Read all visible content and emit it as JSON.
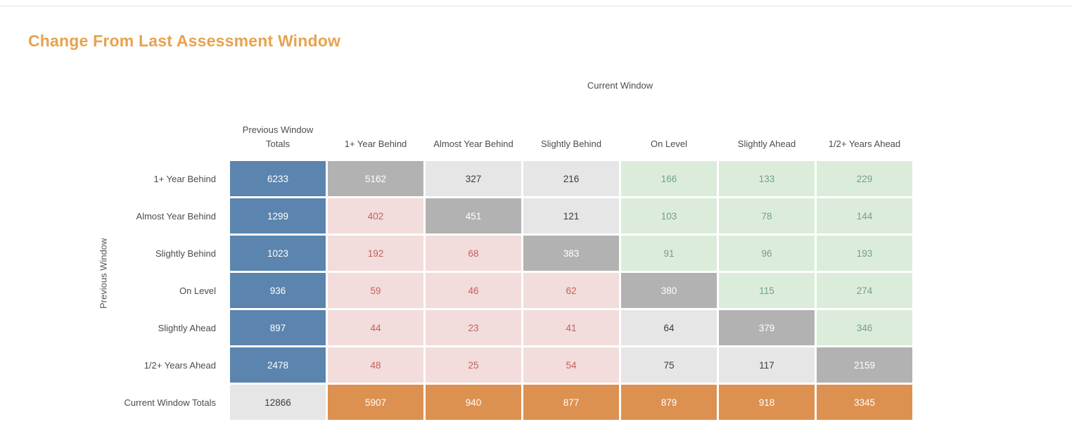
{
  "page": {
    "title": "Change From Last Assessment Window"
  },
  "matrix": {
    "x_axis_title": "Current Window",
    "y_axis_title": "Previous Window",
    "column_headers": [
      "Previous Window Totals",
      "1+ Year Behind",
      "Almost Year Behind",
      "Slightly Behind",
      "On Level",
      "Slightly Ahead",
      "1/2+ Years Ahead"
    ],
    "rows": [
      {
        "label": "1+ Year Behind",
        "cells": [
          {
            "value": "6233",
            "type": "prev-total"
          },
          {
            "value": "5162",
            "type": "match"
          },
          {
            "value": "327",
            "type": "neutral"
          },
          {
            "value": "216",
            "type": "neutral"
          },
          {
            "value": "166",
            "type": "improved"
          },
          {
            "value": "133",
            "type": "improved"
          },
          {
            "value": "229",
            "type": "improved"
          }
        ]
      },
      {
        "label": "Almost Year Behind",
        "cells": [
          {
            "value": "1299",
            "type": "prev-total"
          },
          {
            "value": "402",
            "type": "regressed"
          },
          {
            "value": "451",
            "type": "match"
          },
          {
            "value": "121",
            "type": "neutral"
          },
          {
            "value": "103",
            "type": "improved"
          },
          {
            "value": "78",
            "type": "improved"
          },
          {
            "value": "144",
            "type": "improved"
          }
        ]
      },
      {
        "label": "Slightly Behind",
        "cells": [
          {
            "value": "1023",
            "type": "prev-total"
          },
          {
            "value": "192",
            "type": "regressed"
          },
          {
            "value": "68",
            "type": "regressed"
          },
          {
            "value": "383",
            "type": "match"
          },
          {
            "value": "91",
            "type": "improved"
          },
          {
            "value": "96",
            "type": "improved"
          },
          {
            "value": "193",
            "type": "improved"
          }
        ]
      },
      {
        "label": "On Level",
        "cells": [
          {
            "value": "936",
            "type": "prev-total"
          },
          {
            "value": "59",
            "type": "regressed"
          },
          {
            "value": "46",
            "type": "regressed"
          },
          {
            "value": "62",
            "type": "regressed"
          },
          {
            "value": "380",
            "type": "match"
          },
          {
            "value": "115",
            "type": "improved"
          },
          {
            "value": "274",
            "type": "improved"
          }
        ]
      },
      {
        "label": "Slightly Ahead",
        "cells": [
          {
            "value": "897",
            "type": "prev-total"
          },
          {
            "value": "44",
            "type": "regressed"
          },
          {
            "value": "23",
            "type": "regressed"
          },
          {
            "value": "41",
            "type": "regressed"
          },
          {
            "value": "64",
            "type": "neutral"
          },
          {
            "value": "379",
            "type": "match"
          },
          {
            "value": "346",
            "type": "improved"
          }
        ]
      },
      {
        "label": "1/2+ Years Ahead",
        "cells": [
          {
            "value": "2478",
            "type": "prev-total"
          },
          {
            "value": "48",
            "type": "regressed"
          },
          {
            "value": "25",
            "type": "regressed"
          },
          {
            "value": "54",
            "type": "regressed"
          },
          {
            "value": "75",
            "type": "neutral"
          },
          {
            "value": "117",
            "type": "neutral"
          },
          {
            "value": "2159",
            "type": "match"
          }
        ]
      },
      {
        "label": "Current Window Totals",
        "cells": [
          {
            "value": "12866",
            "type": "grand-total"
          },
          {
            "value": "5907",
            "type": "cur-total"
          },
          {
            "value": "940",
            "type": "cur-total"
          },
          {
            "value": "877",
            "type": "cur-total"
          },
          {
            "value": "879",
            "type": "cur-total"
          },
          {
            "value": "918",
            "type": "cur-total"
          },
          {
            "value": "3345",
            "type": "cur-total"
          }
        ]
      }
    ]
  },
  "chart_data": {
    "type": "heatmap",
    "title": "Change From Last Assessment Window",
    "xlabel": "Current Window",
    "ylabel": "Previous Window",
    "columns": [
      "Previous Window Totals",
      "1+ Year Behind",
      "Almost Year Behind",
      "Slightly Behind",
      "On Level",
      "Slightly Ahead",
      "1/2+ Years Ahead"
    ],
    "rows": [
      "1+ Year Behind",
      "Almost Year Behind",
      "Slightly Behind",
      "On Level",
      "Slightly Ahead",
      "1/2+ Years Ahead",
      "Current Window Totals"
    ],
    "values": [
      [
        6233,
        5162,
        327,
        216,
        166,
        133,
        229
      ],
      [
        1299,
        402,
        451,
        121,
        103,
        78,
        144
      ],
      [
        1023,
        192,
        68,
        383,
        91,
        96,
        193
      ],
      [
        936,
        59,
        46,
        62,
        380,
        115,
        274
      ],
      [
        897,
        44,
        23,
        41,
        64,
        379,
        346
      ],
      [
        2478,
        48,
        25,
        54,
        75,
        117,
        2159
      ],
      [
        12866,
        5907,
        940,
        877,
        879,
        918,
        3345
      ]
    ],
    "legend_position": "none",
    "grid": false,
    "cell_color_meaning": {
      "prev-total": "#5b84ae",
      "match": "#b2b2b2",
      "neutral": "#e6e6e6",
      "regressed": "#f2dcdc",
      "improved": "#dcecdb",
      "cur-total": "#dd9150",
      "grand-total": "#e6e6e6"
    }
  },
  "colors": {
    "title_orange": "#e8a24e",
    "blue_prev_total": "#5b84ae",
    "diagonal_gray": "#b2b2b2",
    "neutral_gray": "#e6e6e6",
    "regressed_pink_bg": "#f2dcdc",
    "regressed_pink_text": "#c4615c",
    "improved_green_bg": "#dcecdb",
    "improved_green_text": "#74a183",
    "totals_orange": "#dd9150"
  }
}
